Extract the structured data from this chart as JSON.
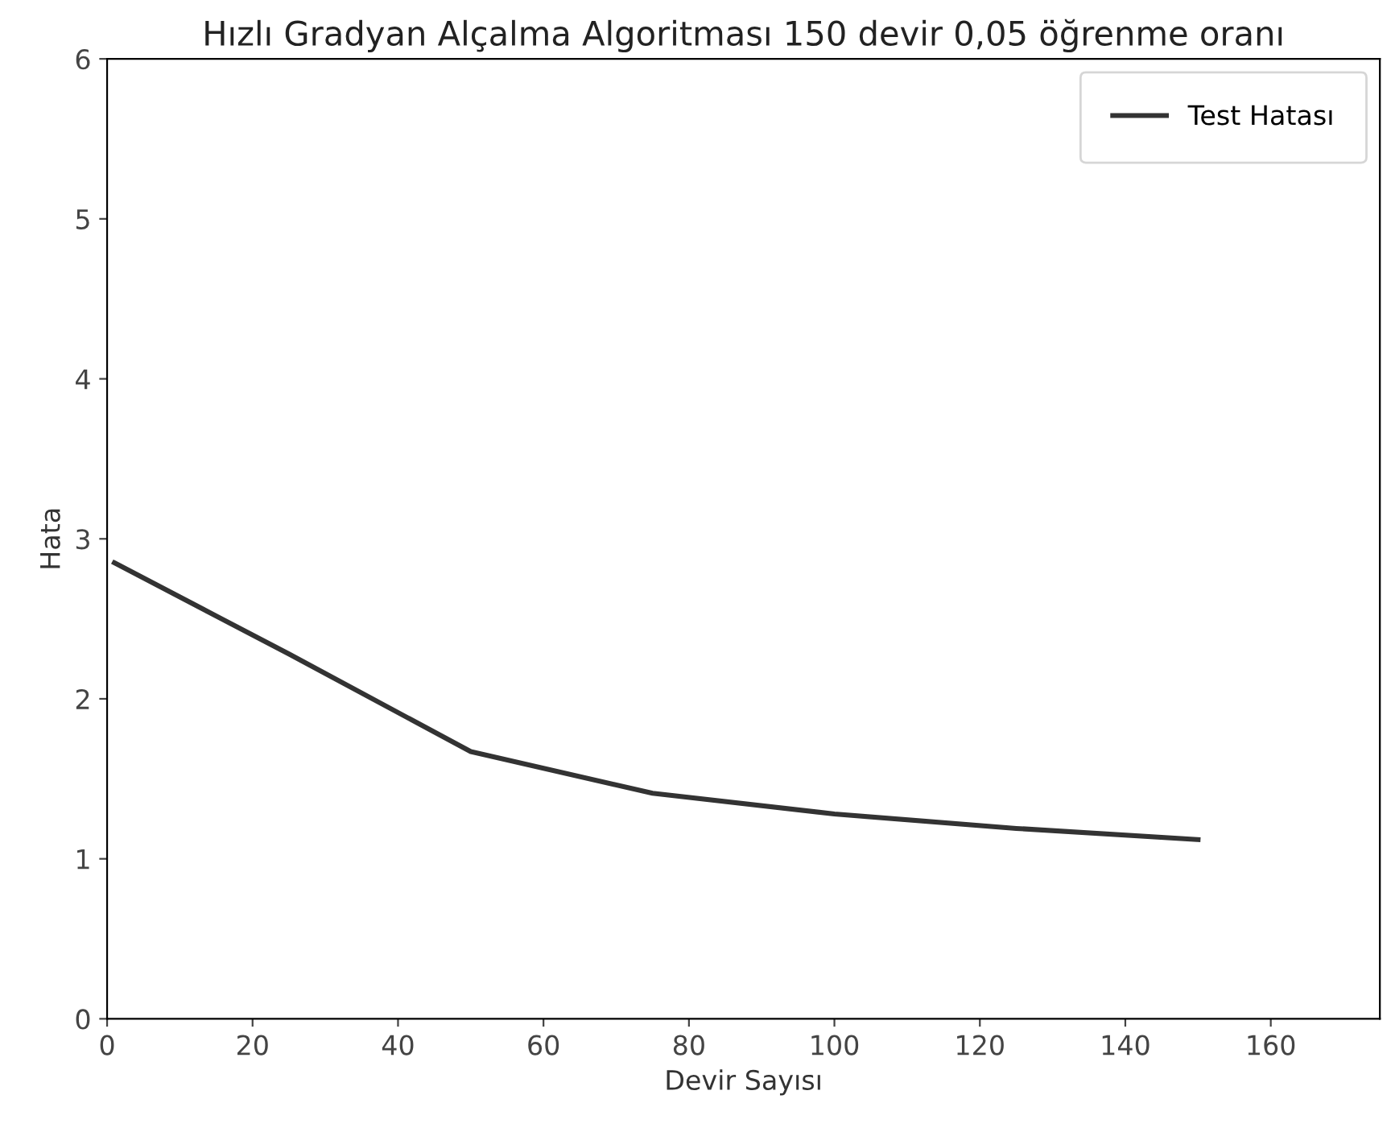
{
  "chart_data": {
    "type": "line",
    "title": "Hızlı Gradyan Alçalma Algoritması 150 devir 0,05 öğrenme oranı",
    "xlabel": "Devir Sayısı",
    "ylabel": "Hata",
    "x": [
      1,
      25,
      50,
      75,
      100,
      125,
      150
    ],
    "series": [
      {
        "name": "Test Hatası",
        "color": "#333333",
        "values": [
          2.85,
          2.28,
          1.67,
          1.41,
          1.28,
          1.19,
          1.12
        ]
      }
    ],
    "xlim": [
      0,
      175
    ],
    "xticks": [
      0,
      20,
      40,
      60,
      80,
      100,
      120,
      140,
      160
    ],
    "ylim": [
      0,
      6
    ],
    "yticks": [
      0,
      1,
      2,
      3,
      4,
      5,
      6
    ],
    "grid": false,
    "legend": "top right",
    "marker": "none",
    "line_style": "solid"
  }
}
